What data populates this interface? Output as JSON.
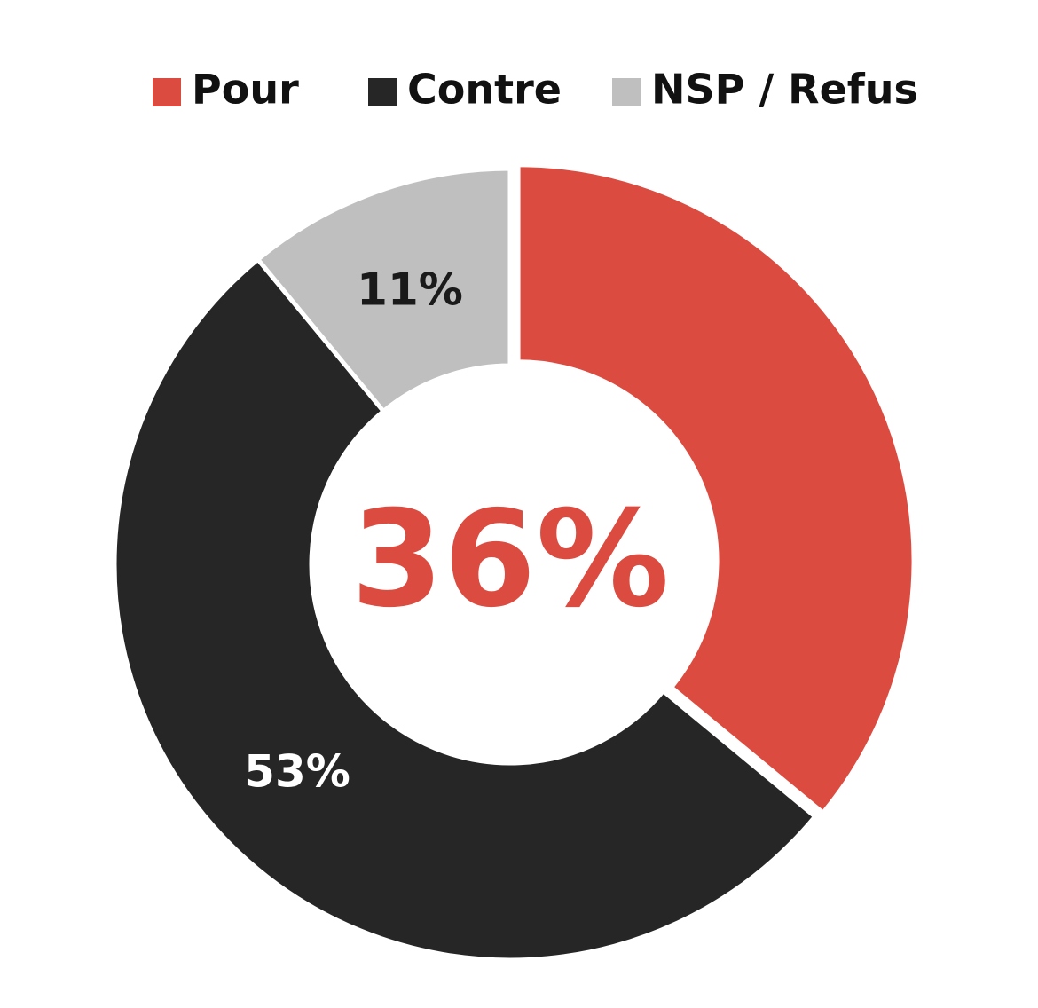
{
  "chart_data": {
    "type": "donut",
    "categories": [
      "Pour",
      "Contre",
      "NSP / Refus"
    ],
    "values": [
      36,
      53,
      11
    ],
    "value_labels": [
      "36%",
      "53%",
      "11%"
    ],
    "colors": [
      "#dc4b40",
      "#262626",
      "#bfbfbf"
    ],
    "label_colors": [
      "#dc4b40",
      "#ffffff",
      "#1a1a1a"
    ],
    "legend": "top"
  }
}
